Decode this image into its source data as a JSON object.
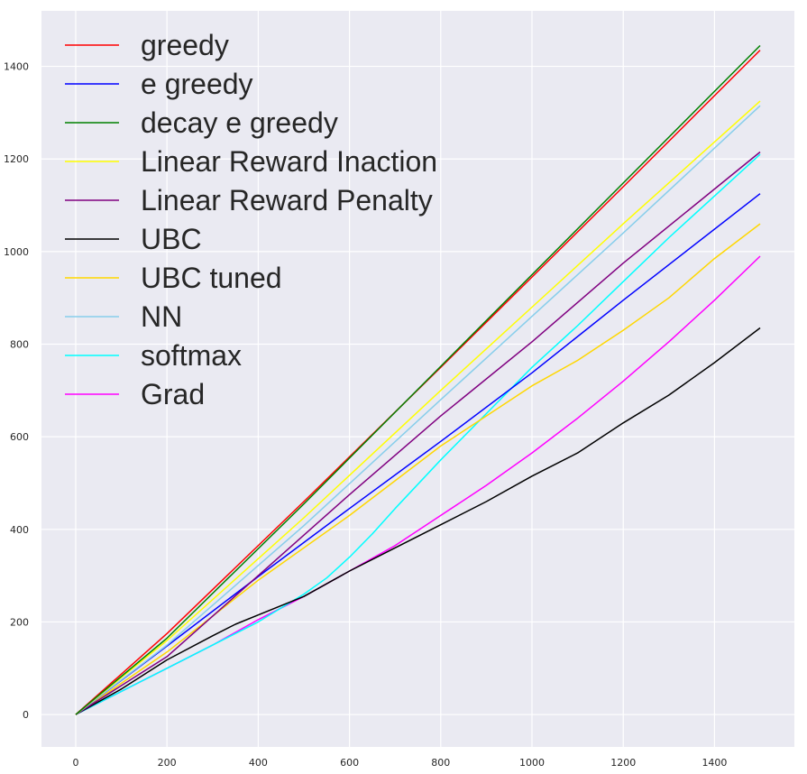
{
  "chart_data": {
    "type": "line",
    "title": "",
    "xlabel": "",
    "ylabel": "",
    "xlim": [
      -75,
      1575
    ],
    "ylim": [
      -70,
      1520
    ],
    "xticks": [
      0,
      200,
      400,
      600,
      800,
      1000,
      1200,
      1400
    ],
    "yticks": [
      0,
      200,
      400,
      600,
      800,
      1000,
      1200,
      1400
    ],
    "grid": true,
    "background": "#eaeaf2",
    "legend_position": "top-left",
    "series": [
      {
        "name": "greedy",
        "color": "#ff0000",
        "points": [
          [
            0,
            0
          ],
          [
            200,
            175
          ],
          [
            500,
            460
          ],
          [
            800,
            750
          ],
          [
            1000,
            945
          ],
          [
            1200,
            1140
          ],
          [
            1500,
            1435
          ]
        ]
      },
      {
        "name": "e greedy",
        "color": "#0000ff",
        "points": [
          [
            0,
            0
          ],
          [
            200,
            148
          ],
          [
            400,
            298
          ],
          [
            600,
            445
          ],
          [
            800,
            590
          ],
          [
            1000,
            738
          ],
          [
            1200,
            895
          ],
          [
            1500,
            1125
          ]
        ]
      },
      {
        "name": "decay e greedy",
        "color": "#008000",
        "points": [
          [
            0,
            0
          ],
          [
            200,
            165
          ],
          [
            500,
            455
          ],
          [
            800,
            752
          ],
          [
            1000,
            950
          ],
          [
            1200,
            1148
          ],
          [
            1500,
            1445
          ]
        ]
      },
      {
        "name": "Linear Reward Inaction",
        "color": "#ffff00",
        "points": [
          [
            0,
            0
          ],
          [
            200,
            160
          ],
          [
            500,
            425
          ],
          [
            800,
            700
          ],
          [
            1000,
            880
          ],
          [
            1200,
            1060
          ],
          [
            1500,
            1325
          ]
        ]
      },
      {
        "name": "Linear Reward Penalty",
        "color": "#800080",
        "points": [
          [
            0,
            0
          ],
          [
            200,
            125
          ],
          [
            400,
            300
          ],
          [
            600,
            475
          ],
          [
            800,
            645
          ],
          [
            1000,
            805
          ],
          [
            1200,
            975
          ],
          [
            1500,
            1215
          ]
        ]
      },
      {
        "name": "UBC",
        "color": "#000000",
        "points": [
          [
            0,
            0
          ],
          [
            100,
            55
          ],
          [
            200,
            118
          ],
          [
            300,
            170
          ],
          [
            350,
            195
          ],
          [
            400,
            215
          ],
          [
            500,
            255
          ],
          [
            600,
            310
          ],
          [
            700,
            360
          ],
          [
            800,
            410
          ],
          [
            900,
            460
          ],
          [
            1000,
            515
          ],
          [
            1100,
            565
          ],
          [
            1200,
            630
          ],
          [
            1300,
            690
          ],
          [
            1400,
            760
          ],
          [
            1500,
            835
          ]
        ]
      },
      {
        "name": "UBC tuned",
        "color": "#ffd700",
        "points": [
          [
            0,
            0
          ],
          [
            200,
            135
          ],
          [
            400,
            290
          ],
          [
            600,
            430
          ],
          [
            800,
            580
          ],
          [
            1000,
            710
          ],
          [
            1100,
            765
          ],
          [
            1200,
            830
          ],
          [
            1250,
            865
          ],
          [
            1300,
            900
          ],
          [
            1400,
            985
          ],
          [
            1500,
            1060
          ]
        ]
      },
      {
        "name": "NN",
        "color": "#87ceeb",
        "points": [
          [
            0,
            0
          ],
          [
            200,
            150
          ],
          [
            500,
            408
          ],
          [
            800,
            680
          ],
          [
            1000,
            860
          ],
          [
            1200,
            1040
          ],
          [
            1500,
            1315
          ]
        ]
      },
      {
        "name": "softmax",
        "color": "#00ffff",
        "points": [
          [
            0,
            0
          ],
          [
            100,
            50
          ],
          [
            200,
            100
          ],
          [
            300,
            150
          ],
          [
            400,
            200
          ],
          [
            500,
            260
          ],
          [
            550,
            295
          ],
          [
            600,
            340
          ],
          [
            650,
            390
          ],
          [
            700,
            445
          ],
          [
            800,
            550
          ],
          [
            900,
            650
          ],
          [
            1000,
            750
          ],
          [
            1100,
            840
          ],
          [
            1200,
            935
          ],
          [
            1300,
            1030
          ],
          [
            1400,
            1120
          ],
          [
            1500,
            1210
          ]
        ]
      },
      {
        "name": "Grad",
        "color": "#ff00ff",
        "points": [
          [
            0,
            0
          ],
          [
            100,
            50
          ],
          [
            200,
            100
          ],
          [
            300,
            150
          ],
          [
            400,
            205
          ],
          [
            500,
            255
          ],
          [
            600,
            310
          ],
          [
            700,
            365
          ],
          [
            800,
            430
          ],
          [
            900,
            495
          ],
          [
            1000,
            565
          ],
          [
            1100,
            640
          ],
          [
            1200,
            720
          ],
          [
            1300,
            805
          ],
          [
            1400,
            895
          ],
          [
            1500,
            990
          ]
        ]
      }
    ]
  }
}
